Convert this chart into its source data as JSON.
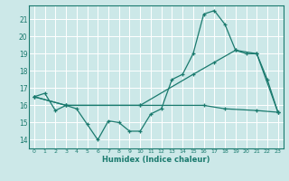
{
  "xlabel": "Humidex (Indice chaleur)",
  "bg_color": "#cce8e8",
  "grid_color": "#ffffff",
  "line_color": "#1a7a6e",
  "xlim": [
    -0.5,
    23.5
  ],
  "ylim": [
    13.5,
    21.8
  ],
  "yticks": [
    14,
    15,
    16,
    17,
    18,
    19,
    20,
    21
  ],
  "xticks": [
    0,
    1,
    2,
    3,
    4,
    5,
    6,
    7,
    8,
    9,
    10,
    11,
    12,
    13,
    14,
    15,
    16,
    17,
    18,
    19,
    20,
    21,
    22,
    23
  ],
  "series1": {
    "x": [
      0,
      1,
      2,
      3,
      4,
      5,
      6,
      7,
      8,
      9,
      10,
      11,
      12,
      13,
      14,
      15,
      16,
      17,
      18,
      19,
      20,
      21,
      22,
      23
    ],
    "y": [
      16.5,
      16.7,
      15.7,
      16.0,
      15.8,
      14.9,
      14.0,
      15.1,
      15.0,
      14.5,
      14.5,
      15.5,
      15.8,
      17.5,
      17.8,
      19.0,
      21.3,
      21.5,
      20.7,
      19.2,
      19.0,
      19.0,
      17.5,
      15.6
    ]
  },
  "series2": {
    "x": [
      0,
      3,
      10,
      16,
      18,
      21,
      23
    ],
    "y": [
      16.5,
      16.0,
      16.0,
      16.0,
      15.8,
      15.7,
      15.6
    ]
  },
  "series3": {
    "x": [
      0,
      3,
      10,
      15,
      17,
      19,
      21,
      23
    ],
    "y": [
      16.5,
      16.0,
      16.0,
      17.8,
      18.5,
      19.2,
      19.0,
      15.6
    ]
  }
}
